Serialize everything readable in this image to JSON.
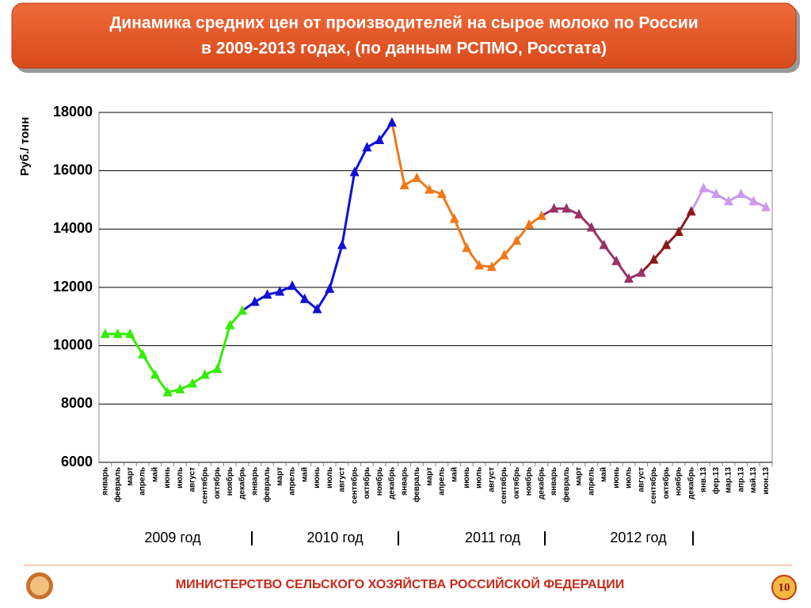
{
  "header": {
    "title": [
      "Динамика средних цен от производителей на сырое молоко по России",
      "в 2009-2013 годах, (по данным РСПМО, Росстата)"
    ]
  },
  "chart_data": {
    "type": "line",
    "y_label": "Руб./ тонн",
    "ylim": [
      6000,
      18000
    ],
    "yticks": [
      6000,
      8000,
      10000,
      12000,
      14000,
      16000,
      18000
    ],
    "grid": true,
    "categories": [
      "январь",
      "февраль",
      "март",
      "апрель",
      "май",
      "июнь",
      "июль",
      "август",
      "сентябрь",
      "октябрь",
      "ноябрь",
      "декабрь",
      "январь",
      "февраль",
      "март",
      "апрель",
      "май",
      "июнь",
      "июль",
      "август",
      "сентябрь",
      "октябрь",
      "ноябрь",
      "декабрь",
      "январь",
      "февраль",
      "март",
      "апрель",
      "май",
      "июнь",
      "июль",
      "август",
      "сентябрь",
      "октябрь",
      "ноябрь",
      "декабрь",
      "январь",
      "февраль",
      "март",
      "апрель",
      "май",
      "июнь",
      "июль",
      "август",
      "сентябрь",
      "октябрь",
      "ноябрь",
      "декабрь",
      "янв.13",
      "фер.13",
      "мар.13",
      "апр.13",
      "май.13",
      "июн.13"
    ],
    "year_labels": [
      "2009 год",
      "2010 год",
      "2011 год",
      "2012 год"
    ],
    "series": [
      {
        "color": "#33ee00",
        "values": [
          10400,
          10400,
          10400,
          9700,
          9000,
          8400,
          8500,
          8700,
          9000,
          9200,
          10700,
          11200,
          null,
          null,
          null,
          null,
          null,
          null,
          null,
          null,
          null,
          null,
          null,
          null,
          null,
          null,
          null,
          null,
          null,
          null,
          null,
          null,
          null,
          null,
          null,
          null,
          null,
          null,
          null,
          null,
          null,
          null,
          null,
          null,
          null,
          null,
          null,
          null,
          null,
          null,
          null,
          null,
          null,
          null
        ]
      },
      {
        "color": "#1010d8",
        "values": [
          null,
          null,
          null,
          null,
          null,
          null,
          null,
          null,
          null,
          null,
          null,
          null,
          11500,
          11750,
          11850,
          12050,
          11600,
          11250,
          11950,
          13450,
          15950,
          16800,
          17050,
          17650,
          null,
          null,
          null,
          null,
          null,
          null,
          null,
          null,
          null,
          null,
          null,
          null,
          null,
          null,
          null,
          null,
          null,
          null,
          null,
          null,
          null,
          null,
          null,
          null,
          null,
          null,
          null,
          null,
          null,
          null
        ]
      },
      {
        "color": "#f07818",
        "values": [
          null,
          null,
          null,
          null,
          null,
          null,
          null,
          null,
          null,
          null,
          null,
          null,
          null,
          null,
          null,
          null,
          null,
          null,
          null,
          null,
          null,
          null,
          null,
          null,
          15500,
          15750,
          15350,
          15200,
          14350,
          13350,
          12750,
          12700,
          13100,
          13600,
          14150,
          14450,
          null,
          null,
          null,
          null,
          null,
          null,
          null,
          null,
          null,
          null,
          null,
          null,
          null,
          null,
          null,
          null,
          null,
          null
        ]
      },
      {
        "color": "#993366",
        "values": [
          null,
          null,
          null,
          null,
          null,
          null,
          null,
          null,
          null,
          null,
          null,
          null,
          null,
          null,
          null,
          null,
          null,
          null,
          null,
          null,
          null,
          null,
          null,
          null,
          null,
          null,
          null,
          null,
          null,
          null,
          null,
          null,
          null,
          null,
          null,
          null,
          14700,
          14700,
          14500,
          14050,
          13450,
          12900,
          12300,
          12500,
          null,
          null,
          null,
          null,
          null,
          null,
          null,
          null,
          null,
          null
        ]
      },
      {
        "color": "#8b1a1a",
        "values": [
          null,
          null,
          null,
          null,
          null,
          null,
          null,
          null,
          null,
          null,
          null,
          null,
          null,
          null,
          null,
          null,
          null,
          null,
          null,
          null,
          null,
          null,
          null,
          null,
          null,
          null,
          null,
          null,
          null,
          null,
          null,
          null,
          null,
          null,
          null,
          null,
          null,
          null,
          null,
          null,
          null,
          null,
          null,
          null,
          12950,
          13450,
          13900,
          14600,
          null,
          null,
          null,
          null,
          null,
          null
        ]
      },
      {
        "color": "#cc99ee",
        "values": [
          null,
          null,
          null,
          null,
          null,
          null,
          null,
          null,
          null,
          null,
          null,
          null,
          null,
          null,
          null,
          null,
          null,
          null,
          null,
          null,
          null,
          null,
          null,
          null,
          null,
          null,
          null,
          null,
          null,
          null,
          null,
          null,
          null,
          null,
          null,
          null,
          null,
          null,
          null,
          null,
          null,
          null,
          null,
          null,
          null,
          null,
          null,
          null,
          15400,
          15200,
          14950,
          15200,
          14950,
          14750
        ]
      }
    ]
  },
  "footer": {
    "text": "МИНИСТЕРСТВО СЕЛЬСКОГО ХОЗЯЙСТВА РОССИЙСКОЙ ФЕДЕРАЦИИ",
    "page": "10"
  }
}
